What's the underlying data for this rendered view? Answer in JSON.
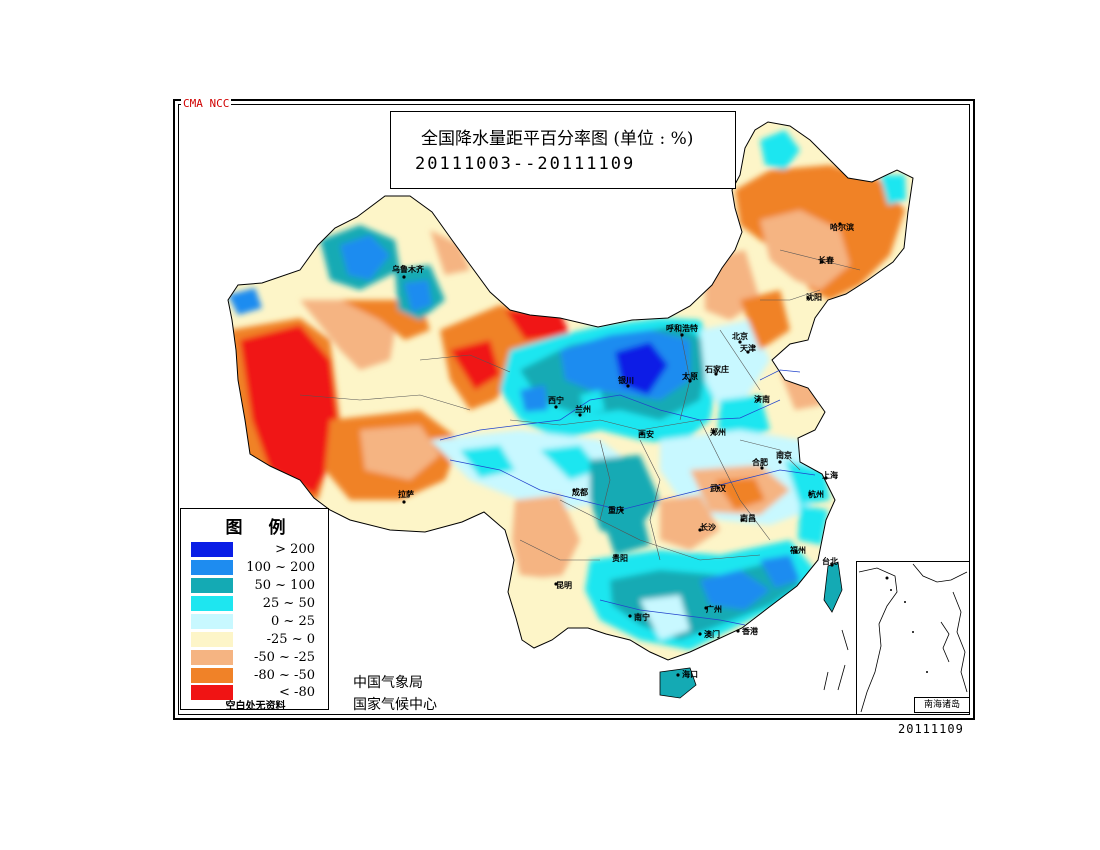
{
  "header": {
    "watermark": "CMA NCC",
    "title": "全国降水量距平百分率图 (单位 : %)",
    "period": "20111003--20111109"
  },
  "legend": {
    "title": "图例",
    "items": [
      {
        "range": "> 200",
        "color": "#0a1ee6"
      },
      {
        "range": "100 ~ 200",
        "color": "#1e8cf0"
      },
      {
        "range": "50 ~ 100",
        "color": "#14aab4"
      },
      {
        "range": "25 ~ 50",
        "color": "#1ee6f0"
      },
      {
        "range": "0 ~ 25",
        "color": "#c8f8ff"
      },
      {
        "range": "-25 ~ 0",
        "color": "#fdf5c8"
      },
      {
        "range": "-50 ~ -25",
        "color": "#f5b482"
      },
      {
        "range": "-80 ~ -50",
        "color": "#f08228"
      },
      {
        "range": "< -80",
        "color": "#f01414"
      }
    ],
    "note": "空白处无资料"
  },
  "agency": {
    "line1": "中国气象局",
    "line2": "国家气候中心"
  },
  "inset": {
    "label": "南海诸岛"
  },
  "date_stamp": "20111109",
  "cities": [
    "乌鲁木齐",
    "拉萨",
    "西宁",
    "兰州",
    "银川",
    "呼和浩特",
    "北京",
    "天津",
    "石家庄",
    "太原",
    "济南",
    "郑州",
    "西安",
    "成都",
    "重庆",
    "贵阳",
    "昆明",
    "南宁",
    "广州",
    "澳门",
    "香港",
    "海口",
    "台北",
    "福州",
    "杭州",
    "上海",
    "南京",
    "合肥",
    "武汉",
    "长沙",
    "南昌",
    "沈阳",
    "长春",
    "哈尔滨"
  ]
}
